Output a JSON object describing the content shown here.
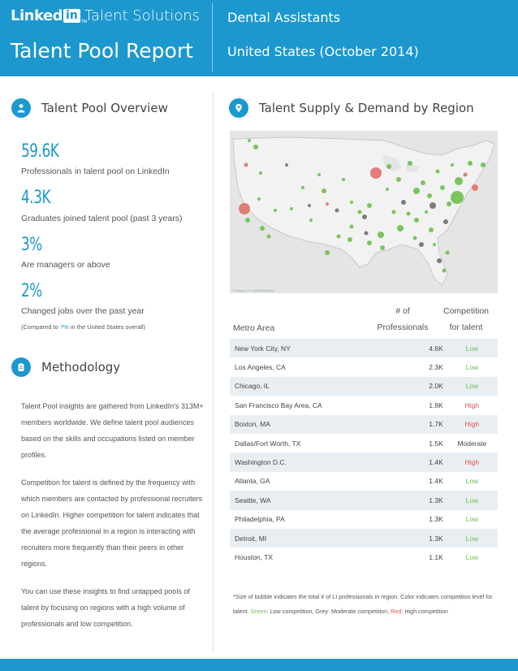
{
  "header": {
    "logo_word": "Linked",
    "logo_in": "in",
    "logo_tm": "TM",
    "suite": "Talent Solutions",
    "report_title": "Talent Pool Report",
    "role": "Dental Assistants",
    "region": "United States (October 2014)"
  },
  "overview": {
    "title": "Talent Pool Overview",
    "icon": "person-icon",
    "stats": [
      {
        "value": "59.6K",
        "label": "Professionals in talent pool on LinkedIn"
      },
      {
        "value": "4.3K",
        "label": "Graduates joined talent pool (past 3 years)"
      },
      {
        "value": "3%",
        "label": "Are managers or above"
      },
      {
        "value": "2%",
        "label": "Changed jobs over the past year"
      }
    ],
    "note_prefix": "(Compared to ",
    "note_highlight": "7%",
    "note_suffix": " in the United States overall)"
  },
  "methodology": {
    "title": "Methodology",
    "icon": "clipboard-icon",
    "paragraphs": [
      "Talent Pool insights are gathered from LinkedIn's 313M+ members worldwide. We define talent pool audiences based on the skills and occupations listed on member profiles.",
      "Competition for talent is defined by the frequency with which members are contacted by professional recruiters on LinkedIn. Higher competition for talent indicates that the average professional in a region is interacting with recruiters more frequently than their peers in other regions.",
      "You can use these insights to find untapped pools of talent by focusing on regions with a high volume of professionals and low competition."
    ]
  },
  "supply": {
    "title": "Talent Supply & Demand by Region",
    "icon": "map-pin-icon",
    "map_credit": "© Mapbox © OpenStreetMap",
    "colors": {
      "low": "#6cc04a",
      "moderate": "#707070",
      "high": "#e0706a"
    }
  },
  "table": {
    "headers": {
      "metro": "Metro Area",
      "num_line1": "# of",
      "num_line2": "Professionals",
      "comp_line1": "Competition",
      "comp_line2": "for talent"
    },
    "rows": [
      {
        "metro": "New York City, NY",
        "num": "4.6K",
        "comp": "Low",
        "color": "#6cc04a"
      },
      {
        "metro": "Los Angeles, CA",
        "num": "2.3K",
        "comp": "Low",
        "color": "#6cc04a"
      },
      {
        "metro": "Chicago, IL",
        "num": "2.0K",
        "comp": "Low",
        "color": "#6cc04a"
      },
      {
        "metro": "San Francisco Bay Area, CA",
        "num": "1.8K",
        "comp": "High",
        "color": "#e0534a"
      },
      {
        "metro": "Boston, MA",
        "num": "1.7K",
        "comp": "High",
        "color": "#e0534a"
      },
      {
        "metro": "Dallas/Fort Worth, TX",
        "num": "1.5K",
        "comp": "Moderate",
        "color": "#444444"
      },
      {
        "metro": "Washington D.C.",
        "num": "1.4K",
        "comp": "High",
        "color": "#e0534a"
      },
      {
        "metro": "Atlanta, GA",
        "num": "1.4K",
        "comp": "Low",
        "color": "#6cc04a"
      },
      {
        "metro": "Seattle, WA",
        "num": "1.3K",
        "comp": "Low",
        "color": "#6cc04a"
      },
      {
        "metro": "Philadelphia, PA",
        "num": "1.3K",
        "comp": "Low",
        "color": "#6cc04a"
      },
      {
        "metro": "Detroit, MI",
        "num": "1.3K",
        "comp": "Low",
        "color": "#6cc04a"
      },
      {
        "metro": "Houston, TX",
        "num": "1.1K",
        "comp": "Low",
        "color": "#6cc04a"
      }
    ]
  },
  "footnote": {
    "part1": "*Size of bubble indicates the total # of LI professionals in region. Color indicates competition level for talent. ",
    "green": "Green",
    "part2": ": Low competition, Grey: Moderate competition, ",
    "red": "Red",
    "part3": ": High competition"
  }
}
